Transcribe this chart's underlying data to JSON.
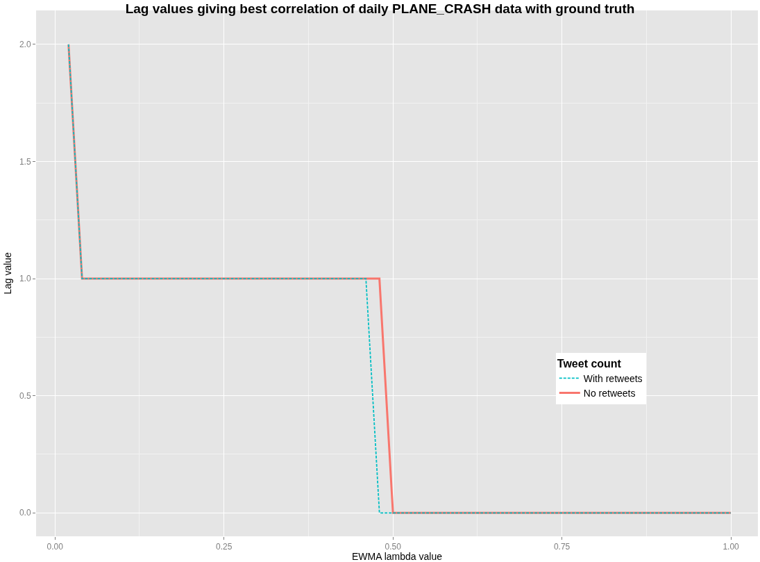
{
  "chart_data": {
    "type": "line",
    "title": "Lag values giving best correlation of daily PLANE_CRASH data with ground truth",
    "xlabel": "EWMA lambda value",
    "ylabel": "Lag value",
    "legend_title": "Tweet count",
    "series": [
      {
        "name": "With retweets",
        "color": "#00bfc4",
        "line_style": "dashed",
        "x": [
          0.02,
          0.04,
          0.46,
          0.48,
          1.0
        ],
        "values": [
          2,
          1,
          1,
          0,
          0
        ]
      },
      {
        "name": "No retweets",
        "color": "#f8766d",
        "line_style": "solid",
        "x": [
          0.02,
          0.04,
          0.48,
          0.5,
          1.0
        ],
        "values": [
          2,
          1,
          1,
          0,
          0
        ]
      }
    ],
    "xlim": [
      -0.028,
      1.04
    ],
    "ylim": [
      -0.1,
      2.145
    ],
    "xticks": [
      {
        "value": 0,
        "label": "0.00"
      },
      0.25,
      {
        "value": 0.5,
        "label": "0.50"
      },
      0.75,
      {
        "value": 1,
        "label": "1.00"
      }
    ],
    "yticks": [
      {
        "value": 0,
        "label": "0.0"
      },
      0.5,
      {
        "value": 1,
        "label": "1.0"
      },
      1.5,
      {
        "value": 2,
        "label": "2.0"
      }
    ],
    "grid": true,
    "legend": "right",
    "marker": "none"
  }
}
